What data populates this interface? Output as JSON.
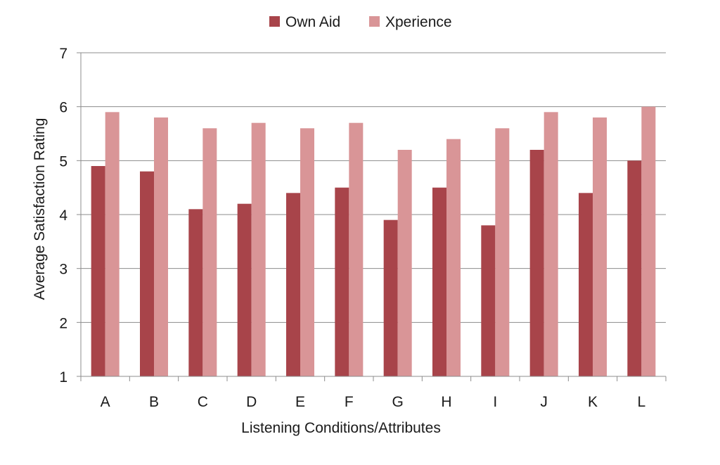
{
  "chart_data": {
    "type": "bar",
    "xlabel": "Listening Conditions/Attributes",
    "ylabel": "Average Satisfaction Rating",
    "categories": [
      "A",
      "B",
      "C",
      "D",
      "E",
      "F",
      "G",
      "H",
      "I",
      "J",
      "K",
      "L"
    ],
    "series": [
      {
        "name": "Own Aid",
        "color": "#a8444a",
        "values": [
          4.9,
          4.8,
          4.1,
          4.2,
          4.4,
          4.5,
          3.9,
          4.5,
          3.8,
          5.2,
          4.4,
          5.0
        ]
      },
      {
        "name": "Xperience",
        "color": "#d99597",
        "values": [
          5.9,
          5.8,
          5.6,
          5.7,
          5.6,
          5.7,
          5.2,
          5.4,
          5.6,
          5.9,
          5.8,
          6.0
        ]
      }
    ],
    "ylim": [
      1,
      7
    ],
    "yticks": [
      1,
      2,
      3,
      4,
      5,
      6,
      7
    ],
    "grid": true,
    "legend_position": "top-center"
  }
}
